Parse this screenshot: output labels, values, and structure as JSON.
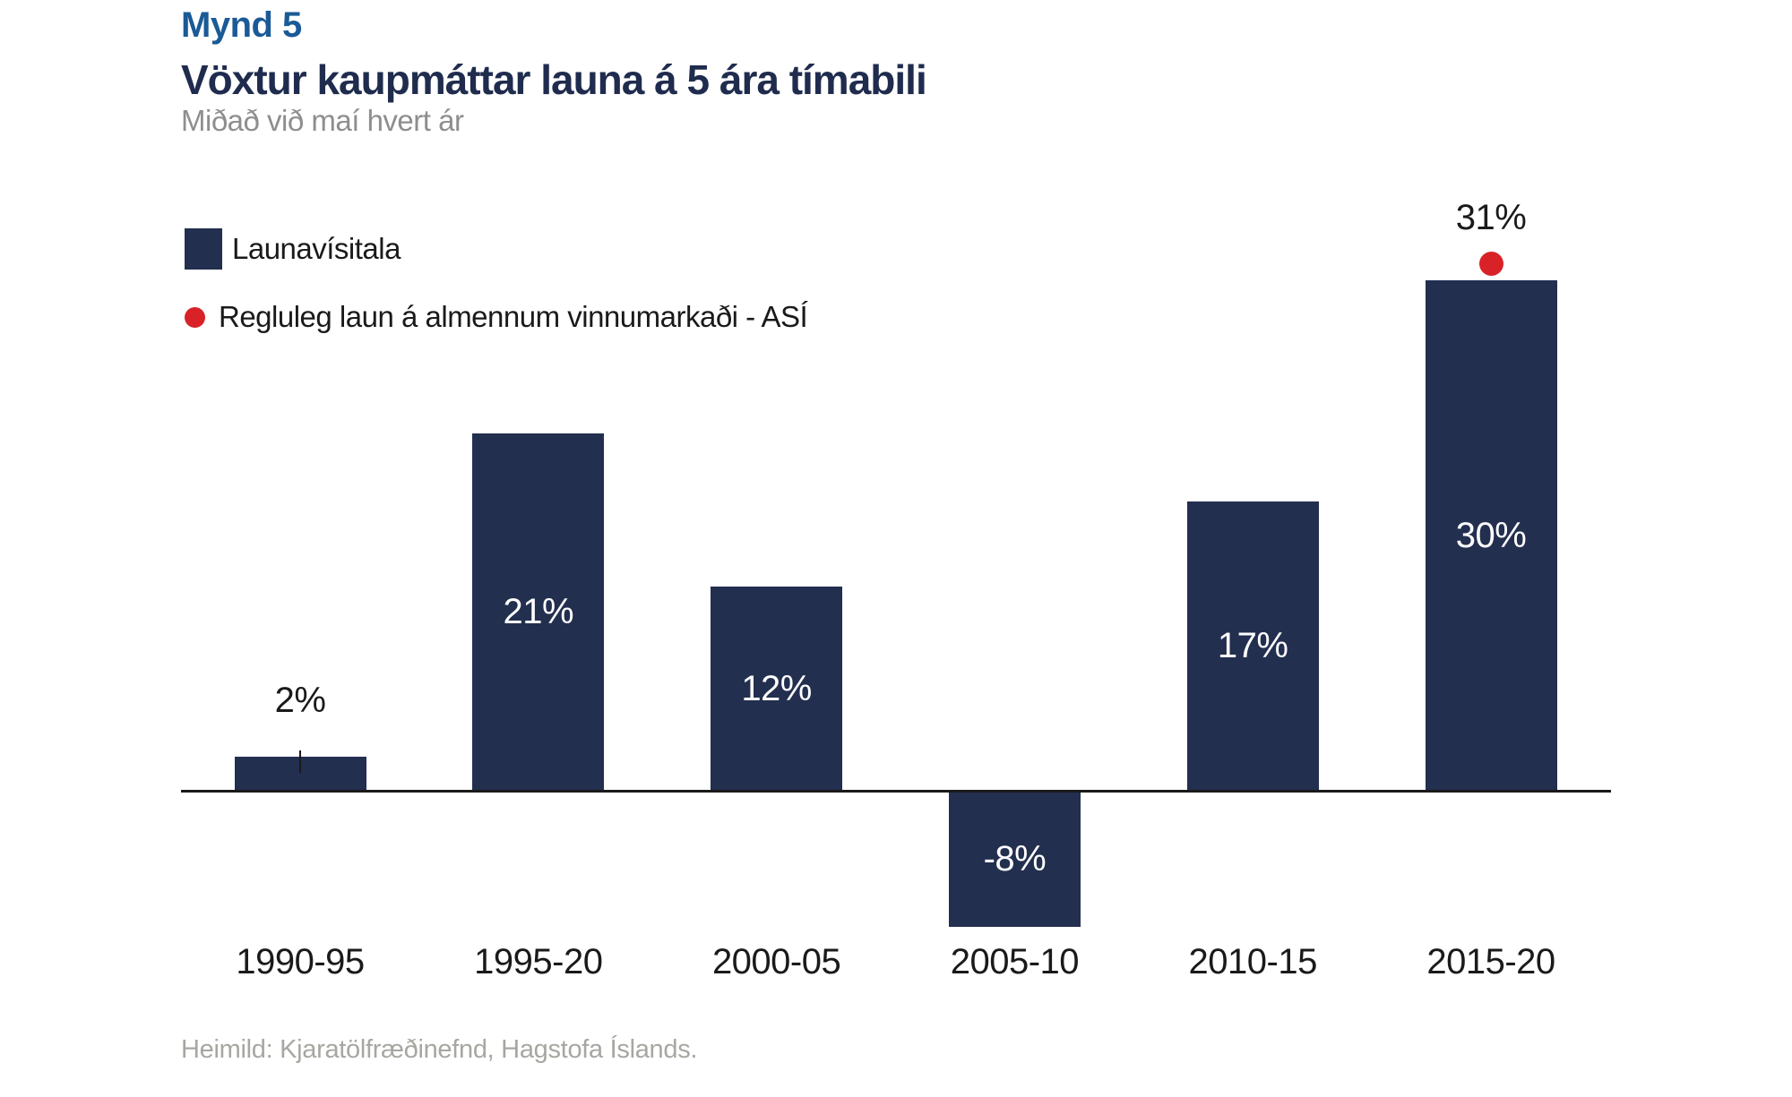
{
  "header": {
    "figure_label": "Mynd 5"
  },
  "chart_data": {
    "type": "bar",
    "title": "Vöxtur kaupmáttar launa á 5 ára tímabili",
    "subtitle": "Miðað við maí hvert ár",
    "categories": [
      "1990-95",
      "1995-20",
      "2000-05",
      "2005-10",
      "2010-15",
      "2015-20"
    ],
    "series": [
      {
        "name": "Launavísitala",
        "type": "bar",
        "color": "#232F4F",
        "values": [
          2,
          21,
          12,
          -8,
          17,
          30
        ],
        "labels": [
          "2%",
          "21%",
          "12%",
          "-8%",
          "17%",
          "30%"
        ]
      },
      {
        "name": "Regluleg laun á almennum vinnumarkaði - ASÍ",
        "type": "scatter",
        "color": "#D92227",
        "x": [
          "2015-20"
        ],
        "values": [
          31
        ],
        "labels": [
          "31%"
        ]
      }
    ],
    "xlabel": "",
    "ylabel": "",
    "value_unit": "%",
    "ylim": [
      -10,
      33
    ],
    "grid": false,
    "legend_position": "top-left",
    "baseline": 0
  },
  "footer": {
    "source": "Heimild: Kjaratölfræðinefnd, Hagstofa Íslands."
  },
  "colors": {
    "bar": "#232F4F",
    "scatter_dot": "#D92227",
    "figure_label": "#1A5A96",
    "title": "#1F2C4E",
    "subtitle": "#8E8E8E",
    "axis": "#1A1A1A",
    "source": "#A7A7A2",
    "bar_value_text": "#FFFFFF"
  }
}
